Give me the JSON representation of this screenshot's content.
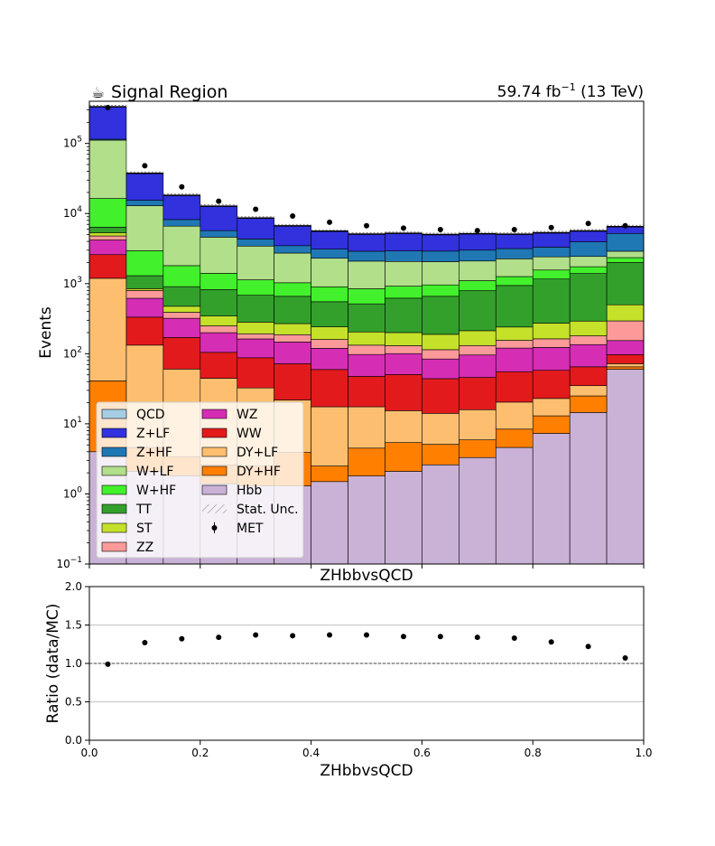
{
  "chart_data": [
    {
      "type": "area",
      "title_left": "Signal Region",
      "title_left_icon": "coffee-icon",
      "title_right": {
        "main": "59.74 fb",
        "sup": "−1",
        "tail": " (13 TeV)"
      },
      "xlabel": "ZHbbvsQCD",
      "ylabel": "Events",
      "yscale": "log",
      "xlim": [
        0,
        1
      ],
      "ylim": [
        0.1,
        400000
      ],
      "y_ticks": [
        {
          "value": 0.1,
          "base": "10",
          "exp": "−1"
        },
        {
          "value": 1,
          "base": "10",
          "exp": "0"
        },
        {
          "value": 10,
          "base": "10",
          "exp": "1"
        },
        {
          "value": 100,
          "base": "10",
          "exp": "2"
        },
        {
          "value": 1000,
          "base": "10",
          "exp": "3"
        },
        {
          "value": 10000,
          "base": "10",
          "exp": "4"
        },
        {
          "value": 100000,
          "base": "10",
          "exp": "5"
        }
      ],
      "bin_edges": [
        0,
        0.0667,
        0.1333,
        0.2,
        0.2667,
        0.3333,
        0.4,
        0.4667,
        0.5333,
        0.6,
        0.6667,
        0.7333,
        0.8,
        0.8667,
        0.9333,
        1.0
      ],
      "stack_order": [
        "Hbb",
        "DY+HF",
        "DY+LF",
        "WW",
        "WZ",
        "ZZ",
        "ST",
        "TT",
        "W+HF",
        "W+LF",
        "Z+HF",
        "Z+LF",
        "QCD"
      ],
      "series": [
        {
          "name": "QCD",
          "color": "#a6cee3",
          "values": [
            0,
            0,
            0,
            0,
            0,
            0,
            0,
            0,
            0,
            0,
            0,
            0,
            0,
            0,
            0
          ]
        },
        {
          "name": "Z+LF",
          "color": "#3131dd",
          "values": [
            218000,
            22000,
            10000,
            7000,
            4300,
            3200,
            2500,
            2200,
            2300,
            2100,
            2150,
            1900,
            2000,
            1700,
            1300
          ]
        },
        {
          "name": "Z+HF",
          "color": "#1f78b4",
          "values": [
            3600,
            2500,
            1600,
            1100,
            900,
            750,
            800,
            800,
            850,
            850,
            900,
            900,
            900,
            1500,
            2300
          ]
        },
        {
          "name": "W+LF",
          "color": "#b2df8a",
          "values": [
            95000,
            10000,
            4800,
            3200,
            2300,
            1700,
            1400,
            1250,
            1150,
            1100,
            1000,
            1000,
            850,
            700,
            550
          ]
        },
        {
          "name": "W+HF",
          "color": "#43f02c",
          "values": [
            10000,
            1650,
            900,
            580,
            450,
            370,
            350,
            330,
            300,
            300,
            310,
            320,
            400,
            350,
            350
          ]
        },
        {
          "name": "TT",
          "color": "#33a02c",
          "values": [
            1100,
            450,
            430,
            480,
            400,
            390,
            310,
            310,
            420,
            470,
            580,
            700,
            890,
            1100,
            1500
          ]
        },
        {
          "name": "ST",
          "color": "#c5e12a",
          "values": [
            500,
            50,
            85,
            95,
            90,
            82,
            82,
            72,
            70,
            75,
            82,
            85,
            110,
            112,
            205
          ]
        },
        {
          "name": "ZZ",
          "color": "#fb9a99",
          "values": [
            600,
            180,
            70,
            50,
            30,
            40,
            40,
            35,
            30,
            30,
            35,
            35,
            40,
            45,
            140
          ]
        },
        {
          "name": "WZ",
          "color": "#d62db5",
          "values": [
            1600,
            285,
            150,
            95,
            75,
            75,
            60,
            50,
            50,
            40,
            50,
            65,
            65,
            70,
            57
          ]
        },
        {
          "name": "WW",
          "color": "#e31a1c",
          "values": [
            1400,
            200,
            110,
            60,
            55,
            50,
            42,
            30,
            35,
            30,
            30,
            35,
            35,
            30,
            25
          ]
        },
        {
          "name": "DY+LF",
          "color": "#fdbf6f",
          "values": [
            1150,
            128,
            57,
            42,
            30,
            18,
            15,
            13,
            10,
            9,
            10,
            12,
            10,
            10,
            7
          ]
        },
        {
          "name": "DY+HF",
          "color": "#ff7f00",
          "values": [
            37,
            2.5,
            1.6,
            1.2,
            1.2,
            2.6,
            1.0,
            2.7,
            3.3,
            2.5,
            2.6,
            3.8,
            5.7,
            10.5,
            5.0
          ]
        },
        {
          "name": "Hbb",
          "color": "#cab2d6",
          "values": [
            4,
            2.1,
            1.8,
            1.4,
            1.3,
            1.3,
            1.5,
            1.8,
            2.1,
            2.6,
            3.3,
            4.6,
            7.3,
            14.5,
            60
          ]
        }
      ],
      "data_series": {
        "name": "MET",
        "x": [
          0.0333,
          0.1,
          0.1667,
          0.2333,
          0.3,
          0.3667,
          0.4333,
          0.5,
          0.5667,
          0.6333,
          0.7,
          0.7667,
          0.8333,
          0.9,
          0.9667
        ],
        "y": [
          325000,
          48000,
          24000,
          15000,
          11500,
          9200,
          7500,
          6700,
          6200,
          5900,
          5700,
          5900,
          6300,
          7200,
          6700
        ]
      },
      "legend": {
        "placement": "lower-left",
        "columns": 2,
        "entries": [
          {
            "label": "QCD",
            "kind": "patch",
            "color": "#a6cee3"
          },
          {
            "label": "WZ",
            "kind": "patch",
            "color": "#d62db5"
          },
          {
            "label": "Z+LF",
            "kind": "patch",
            "color": "#3131dd"
          },
          {
            "label": "WW",
            "kind": "patch",
            "color": "#e31a1c"
          },
          {
            "label": "Z+HF",
            "kind": "patch",
            "color": "#1f78b4"
          },
          {
            "label": "DY+LF",
            "kind": "patch",
            "color": "#fdbf6f"
          },
          {
            "label": "W+LF",
            "kind": "patch",
            "color": "#b2df8a"
          },
          {
            "label": "DY+HF",
            "kind": "patch",
            "color": "#ff7f00"
          },
          {
            "label": "W+HF",
            "kind": "patch",
            "color": "#43f02c"
          },
          {
            "label": "Hbb",
            "kind": "patch",
            "color": "#cab2d6"
          },
          {
            "label": "TT",
            "kind": "patch",
            "color": "#33a02c"
          },
          {
            "label": "Stat. Unc.",
            "kind": "hatch",
            "color": "#888888"
          },
          {
            "label": "ST",
            "kind": "patch",
            "color": "#c5e12a"
          },
          {
            "label": "MET",
            "kind": "errorbar",
            "color": "#000000"
          },
          {
            "label": "ZZ",
            "kind": "patch",
            "color": "#fb9a99"
          }
        ]
      }
    },
    {
      "type": "scatter",
      "xlabel": "ZHbbvsQCD",
      "ylabel": "Ratio (data/MC)",
      "xlim": [
        0,
        1
      ],
      "ylim": [
        0,
        2
      ],
      "x_ticks": [
        "0.0",
        "0.2",
        "0.4",
        "0.6",
        "0.8",
        "1.0"
      ],
      "y_ticks": [
        "0.0",
        "0.5",
        "1.0",
        "1.5",
        "2.0"
      ],
      "grid": "horizontal",
      "reference_line": 1.0,
      "x": [
        0.0333,
        0.1,
        0.1667,
        0.2333,
        0.3,
        0.3667,
        0.4333,
        0.5,
        0.5667,
        0.6333,
        0.7,
        0.7667,
        0.8333,
        0.9,
        0.9667
      ],
      "values": [
        0.99,
        1.27,
        1.32,
        1.34,
        1.37,
        1.36,
        1.37,
        1.37,
        1.35,
        1.35,
        1.34,
        1.33,
        1.28,
        1.22,
        1.07
      ]
    }
  ]
}
